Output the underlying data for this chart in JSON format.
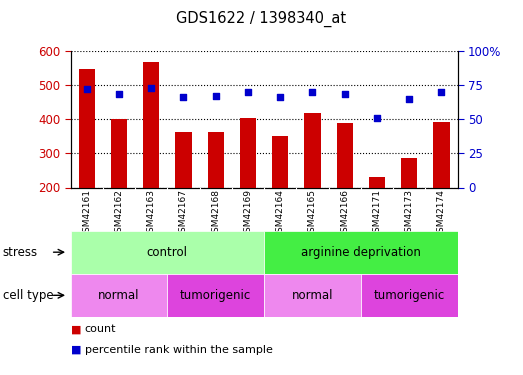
{
  "title": "GDS1622 / 1398340_at",
  "samples": [
    "GSM42161",
    "GSM42162",
    "GSM42163",
    "GSM42167",
    "GSM42168",
    "GSM42169",
    "GSM42164",
    "GSM42165",
    "GSM42166",
    "GSM42171",
    "GSM42173",
    "GSM42174"
  ],
  "counts": [
    547,
    401,
    568,
    362,
    362,
    404,
    350,
    419,
    388,
    230,
    285,
    390
  ],
  "percentile_ranks": [
    72,
    68,
    73,
    66,
    67,
    70,
    66,
    70,
    68,
    51,
    65,
    70
  ],
  "ylim_left": [
    200,
    600
  ],
  "ylim_right": [
    0,
    100
  ],
  "yticks_left": [
    200,
    300,
    400,
    500,
    600
  ],
  "yticks_right": [
    0,
    25,
    50,
    75,
    100
  ],
  "bar_color": "#cc0000",
  "dot_color": "#0000cc",
  "stress_labels": [
    "control",
    "arginine deprivation"
  ],
  "stress_ranges": [
    [
      0,
      5
    ],
    [
      6,
      11
    ]
  ],
  "stress_color_light": "#aaffaa",
  "stress_color_bright": "#44ee44",
  "cell_type_labels": [
    "normal",
    "tumorigenic",
    "normal",
    "tumorigenic"
  ],
  "cell_type_ranges": [
    [
      0,
      2
    ],
    [
      3,
      5
    ],
    [
      6,
      8
    ],
    [
      9,
      11
    ]
  ],
  "cell_type_color_light": "#ee88ee",
  "cell_type_color_bright": "#dd44dd",
  "bg_color": "#ffffff",
  "tick_label_color_left": "#cc0000",
  "tick_label_color_right": "#0000cc",
  "legend_count_label": "count",
  "legend_pct_label": "percentile rank within the sample",
  "xtick_bg": "#cccccc",
  "grid_color": "#000000"
}
